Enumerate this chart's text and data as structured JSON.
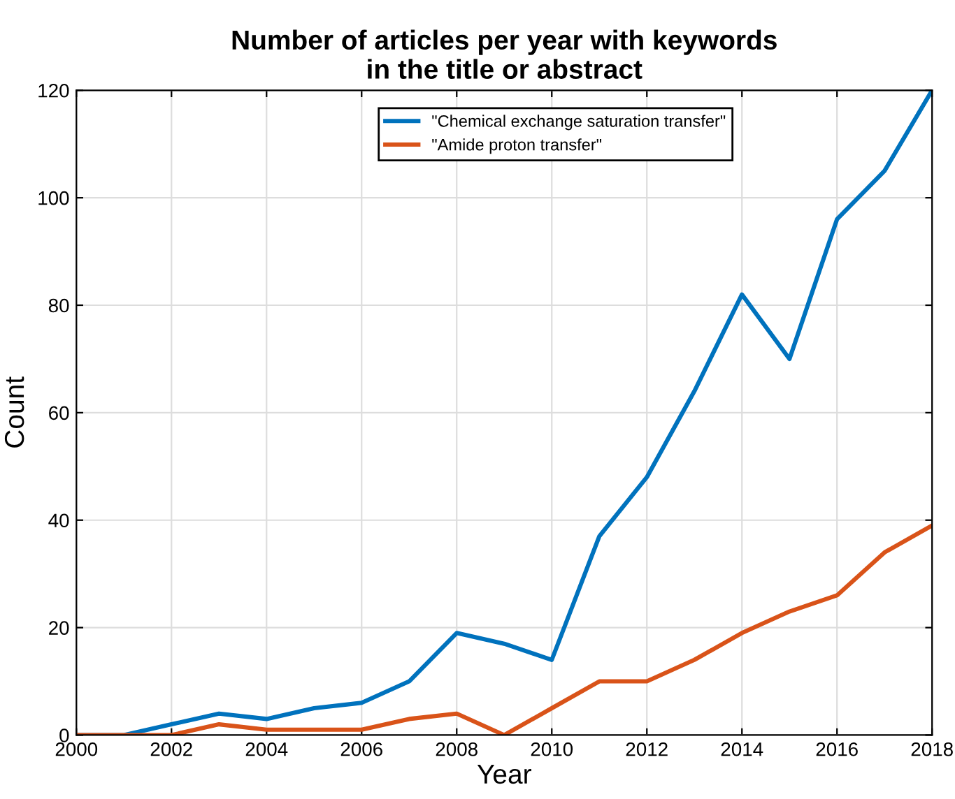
{
  "chart_data": {
    "type": "line",
    "title": "Number of articles per year with keywords\nin the title or abstract",
    "xlabel": "Year",
    "ylabel": "Count",
    "x": [
      2000,
      2001,
      2002,
      2003,
      2004,
      2005,
      2006,
      2007,
      2008,
      2009,
      2010,
      2011,
      2012,
      2013,
      2014,
      2015,
      2016,
      2017,
      2018
    ],
    "series": [
      {
        "name": "\"Chemical exchange saturation transfer\"",
        "color": "#0072bd",
        "values": [
          0,
          0,
          2,
          4,
          3,
          5,
          6,
          10,
          19,
          17,
          14,
          37,
          48,
          64,
          82,
          70,
          96,
          105,
          120
        ]
      },
      {
        "name": "\"Amide proton transfer\"",
        "color": "#d95319",
        "values": [
          0,
          0,
          0,
          2,
          1,
          1,
          1,
          3,
          4,
          0,
          5,
          10,
          10,
          14,
          19,
          23,
          26,
          34,
          39
        ]
      }
    ],
    "xlim": [
      2000,
      2018
    ],
    "xticks": [
      2000,
      2002,
      2004,
      2006,
      2008,
      2010,
      2012,
      2014,
      2016,
      2018
    ],
    "ylim": [
      0,
      120
    ],
    "yticks": [
      0,
      20,
      40,
      60,
      80,
      100,
      120
    ],
    "grid": true,
    "legend": "top",
    "marker": "none",
    "line_style": "solid"
  }
}
